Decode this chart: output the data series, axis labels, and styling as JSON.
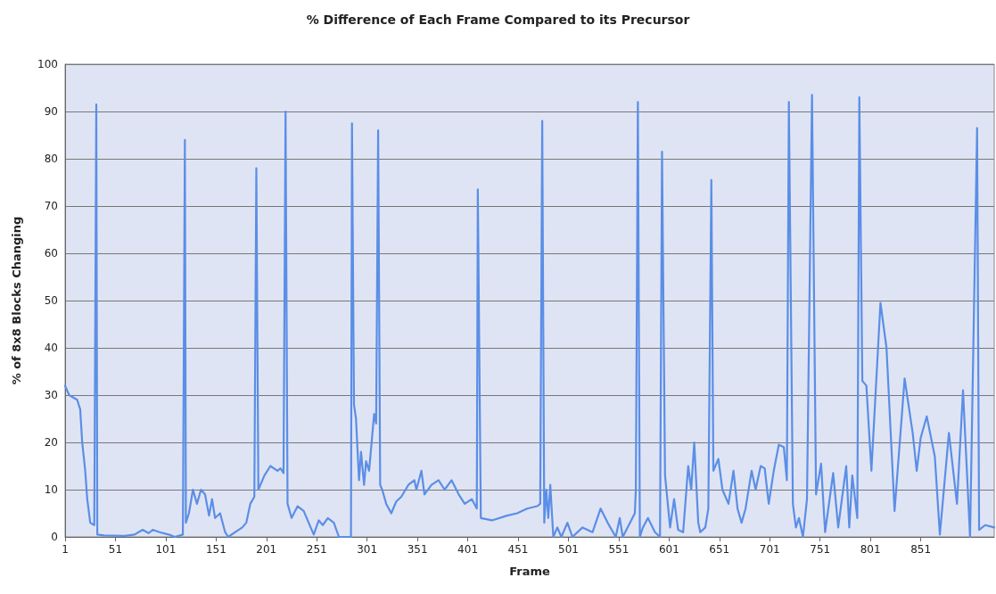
{
  "chart_data": {
    "type": "line",
    "title": "% Difference of Each Frame Compared to its Precursor",
    "xlabel": "Frame",
    "ylabel": "% of 8x8 Blocks Changing",
    "xlim": [
      1,
      924
    ],
    "xticks": [
      1,
      51,
      101,
      151,
      201,
      251,
      301,
      351,
      401,
      451,
      501,
      551,
      601,
      651,
      701,
      751,
      801,
      851
    ],
    "ylim": [
      0,
      100
    ],
    "yticks": [
      0,
      10,
      20,
      30,
      40,
      50,
      60,
      70,
      80,
      90,
      100
    ],
    "grid": "y",
    "marker": "none",
    "line_style": "solid",
    "series": [
      {
        "color": "#5b8ee6",
        "x": [
          1,
          5,
          13,
          16,
          18,
          21,
          23,
          26,
          30,
          32,
          33,
          40,
          60,
          70,
          78,
          84,
          88,
          95,
          104,
          110,
          118,
          120,
          121,
          124,
          128,
          132,
          136,
          140,
          144,
          147,
          150,
          155,
          160,
          163,
          170,
          177,
          181,
          185,
          189,
          191,
          193,
          199,
          205,
          212,
          215,
          218,
          220,
          222,
          226,
          232,
          238,
          243,
          248,
          253,
          257,
          262,
          268,
          273,
          285,
          286,
          288,
          290,
          293,
          295,
          298,
          300,
          303,
          308,
          310,
          312,
          314,
          316,
          320,
          325,
          330,
          335,
          342,
          348,
          350,
          355,
          358,
          365,
          372,
          378,
          385,
          392,
          398,
          405,
          410,
          411,
          414,
          425,
          440,
          450,
          460,
          470,
          473,
          475,
          477,
          479,
          481,
          483,
          486,
          490,
          494,
          500,
          505,
          515,
          525,
          533,
          540,
          548,
          552,
          555,
          567,
          568,
          570,
          572,
          575,
          580,
          587,
          592,
          594,
          597,
          602,
          606,
          610,
          615,
          620,
          623,
          626,
          630,
          632,
          637,
          640,
          643,
          645,
          650,
          654,
          660,
          665,
          669,
          673,
          677,
          683,
          687,
          692,
          696,
          700,
          705,
          710,
          715,
          718,
          720,
          724,
          727,
          730,
          734,
          738,
          743,
          747,
          752,
          756,
          764,
          769,
          777,
          780,
          783,
          788,
          790,
          793,
          797,
          802,
          811,
          817,
          825,
          835,
          843,
          847,
          851,
          857,
          865,
          870,
          879,
          887,
          893,
          900,
          907,
          909,
          915,
          924
        ],
        "values": [
          32,
          30,
          29,
          27,
          20,
          14,
          8,
          3,
          2.5,
          91.5,
          0.5,
          0.3,
          0.2,
          0.5,
          1.5,
          0.8,
          1.5,
          1,
          0.5,
          0,
          0.5,
          84,
          3,
          5,
          10,
          7,
          10,
          9,
          4.5,
          8,
          4,
          5,
          1,
          0,
          1,
          2,
          3,
          7,
          8.5,
          78,
          10,
          13,
          15,
          14,
          14.5,
          13.5,
          90,
          7,
          4,
          6.5,
          5.5,
          3,
          0.5,
          3.5,
          2.5,
          4,
          3,
          0,
          0,
          87.5,
          28,
          25,
          12,
          18,
          11,
          16,
          14,
          26,
          24,
          86,
          11,
          10,
          7,
          5,
          7.5,
          8.5,
          11,
          12,
          10,
          14,
          9,
          11,
          12,
          10,
          12,
          9,
          7,
          8,
          6,
          73.5,
          4,
          3.5,
          4.5,
          5,
          6,
          6.5,
          7,
          88,
          3,
          10,
          4,
          11,
          0,
          2,
          0,
          3,
          0,
          2,
          1,
          6,
          3,
          0,
          4,
          0,
          5,
          10,
          92,
          0,
          2,
          4,
          1,
          0,
          81.5,
          13,
          2,
          8,
          1.5,
          1,
          15,
          10,
          20,
          3,
          1,
          2,
          6,
          75.5,
          14,
          16.5,
          10,
          7,
          14,
          6,
          3,
          6,
          14,
          10,
          15,
          14.5,
          7,
          14,
          19.5,
          19,
          12,
          92,
          7,
          2,
          4,
          0,
          8,
          93.5,
          9,
          15.5,
          1,
          13.5,
          2,
          15,
          2,
          13,
          4,
          93,
          33,
          32,
          14,
          49.5,
          40,
          5.5,
          33.5,
          22,
          14,
          21,
          25.5,
          17,
          0.5,
          22,
          7,
          31,
          0,
          86.5,
          1.5,
          2.5,
          2
        ]
      }
    ]
  }
}
